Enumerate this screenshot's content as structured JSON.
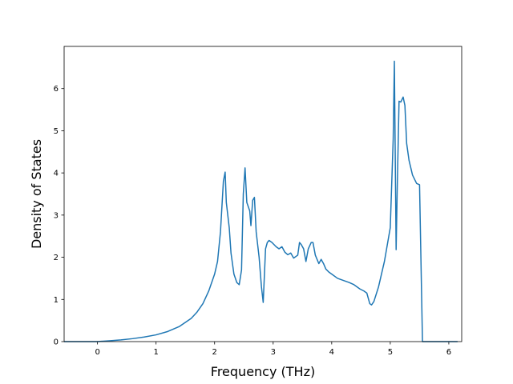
{
  "chart_data": {
    "type": "line",
    "title": "",
    "xlabel": "Frequency (THz)",
    "ylabel": "Density of States",
    "xlim": [
      -0.57,
      6.22
    ],
    "ylim": [
      0,
      7.0
    ],
    "xticks": [
      0,
      1,
      2,
      3,
      4,
      5,
      6
    ],
    "yticks": [
      0,
      1,
      2,
      3,
      4,
      5,
      6
    ],
    "grid": false,
    "legend": "none",
    "color": "#1f77b4",
    "series": [
      {
        "x": [
          -0.57,
          -0.3,
          0.0,
          0.2,
          0.4,
          0.6,
          0.8,
          1.0,
          1.2,
          1.4,
          1.6,
          1.7,
          1.8,
          1.9,
          2.0,
          2.05,
          2.1,
          2.15,
          2.18,
          2.2,
          2.25,
          2.28,
          2.33,
          2.38,
          2.42,
          2.46,
          2.49,
          2.52,
          2.55,
          2.6,
          2.62,
          2.65,
          2.68,
          2.71,
          2.76,
          2.8,
          2.83,
          2.87,
          2.9,
          2.93,
          2.98,
          3.05,
          3.1,
          3.15,
          3.2,
          3.25,
          3.3,
          3.35,
          3.42,
          3.45,
          3.48,
          3.52,
          3.56,
          3.6,
          3.65,
          3.68,
          3.72,
          3.78,
          3.82,
          3.86,
          3.9,
          3.95,
          4.0,
          4.1,
          4.2,
          4.3,
          4.38,
          4.43,
          4.48,
          4.55,
          4.6,
          4.65,
          4.68,
          4.72,
          4.8,
          4.9,
          5.0,
          5.05,
          5.07,
          5.1,
          5.12,
          5.15,
          5.18,
          5.22,
          5.25,
          5.28,
          5.32,
          5.38,
          5.45,
          5.5,
          5.55,
          5.6,
          5.7,
          5.9,
          6.15
        ],
        "y": [
          0.0,
          0.0,
          0.0,
          0.02,
          0.04,
          0.07,
          0.11,
          0.16,
          0.24,
          0.36,
          0.55,
          0.7,
          0.9,
          1.2,
          1.6,
          1.9,
          2.6,
          3.8,
          4.02,
          3.3,
          2.7,
          2.1,
          1.6,
          1.4,
          1.35,
          1.7,
          3.5,
          4.12,
          3.3,
          3.1,
          2.75,
          3.35,
          3.42,
          2.6,
          2.0,
          1.3,
          0.93,
          2.2,
          2.35,
          2.4,
          2.35,
          2.25,
          2.2,
          2.25,
          2.12,
          2.06,
          2.1,
          1.98,
          2.05,
          2.35,
          2.3,
          2.2,
          1.9,
          2.2,
          2.35,
          2.35,
          2.05,
          1.85,
          1.95,
          1.85,
          1.72,
          1.65,
          1.6,
          1.5,
          1.45,
          1.4,
          1.35,
          1.3,
          1.25,
          1.2,
          1.15,
          0.9,
          0.87,
          0.95,
          1.3,
          1.9,
          2.7,
          4.8,
          6.65,
          2.18,
          3.7,
          5.7,
          5.68,
          5.8,
          5.6,
          4.7,
          4.3,
          3.95,
          3.75,
          3.72,
          0.0,
          0.0,
          0.0,
          0.0,
          0.0
        ]
      }
    ]
  }
}
